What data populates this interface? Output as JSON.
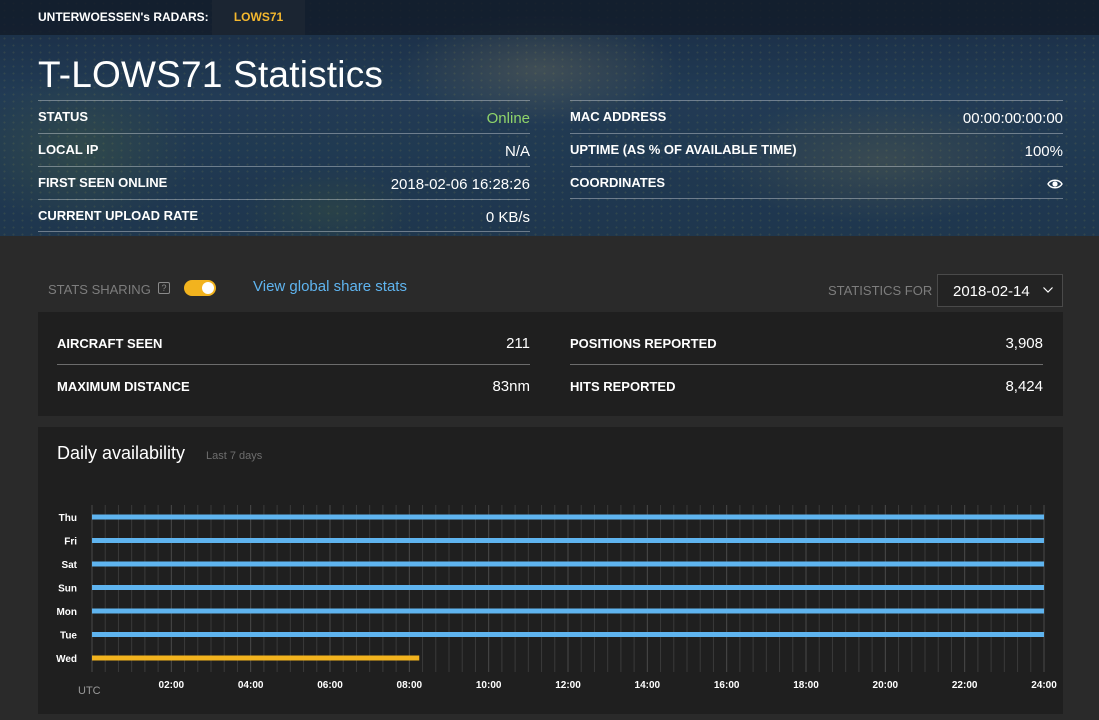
{
  "topbar": {
    "label": "UNTERWOESSEN's RADARS:",
    "tab": "LOWS71"
  },
  "page": {
    "title": "T-LOWS71 Statistics"
  },
  "info_left": [
    {
      "key": "STATUS",
      "value": "Online"
    },
    {
      "key": "LOCAL IP",
      "value": "N/A"
    },
    {
      "key": "FIRST SEEN ONLINE",
      "value": "2018-02-06 16:28:26"
    },
    {
      "key": "CURRENT UPLOAD RATE",
      "value": "0 KB/s"
    }
  ],
  "info_right": [
    {
      "key": "MAC ADDRESS",
      "value": "00:00:00:00:00"
    },
    {
      "key": "UPTIME (AS % OF AVAILABLE TIME)",
      "value": "100%"
    },
    {
      "key": "COORDINATES",
      "value_icon": "eye-icon"
    }
  ],
  "controls": {
    "share_label": "STATS SHARING",
    "help_glyph": "?",
    "sharing_enabled": true,
    "global_link": "View global share stats",
    "stats_for_label": "STATISTICS FOR",
    "selected_date": "2018-02-14"
  },
  "stats": {
    "aircraft_seen_label": "AIRCRAFT SEEN",
    "aircraft_seen_value": "211",
    "max_distance_label": "MAXIMUM DISTANCE",
    "max_distance_value": "83nm",
    "positions_label": "POSITIONS REPORTED",
    "positions_value": "3,908",
    "hits_label": "HITS REPORTED",
    "hits_value": "8,424"
  },
  "availability": {
    "title": "Daily availability",
    "subtitle": "Last 7 days",
    "unit_label": "UTC"
  },
  "colors": {
    "online": "#8fd46a",
    "accent_yellow": "#f2b31e",
    "bar_blue": "#5fb4ef",
    "link_blue": "#5fb4ef"
  },
  "chart_data": {
    "type": "bar",
    "orientation": "horizontal-range",
    "categories": [
      "Thu",
      "Fri",
      "Sat",
      "Sun",
      "Mon",
      "Tue",
      "Wed"
    ],
    "x_tick_labels": [
      "02:00",
      "04:00",
      "06:00",
      "08:00",
      "10:00",
      "12:00",
      "14:00",
      "16:00",
      "18:00",
      "20:00",
      "22:00",
      "24:00"
    ],
    "xlabel": "UTC",
    "xlim": [
      0,
      24
    ],
    "grid": true,
    "series": [
      {
        "values": [
          [
            0,
            24
          ],
          [
            0,
            24
          ],
          [
            0,
            24
          ],
          [
            0,
            24
          ],
          [
            0,
            24
          ],
          [
            0,
            24
          ],
          [
            0,
            8.25
          ]
        ]
      }
    ],
    "bar_colors": [
      "#5fb4ef",
      "#5fb4ef",
      "#5fb4ef",
      "#5fb4ef",
      "#5fb4ef",
      "#5fb4ef",
      "#f2b31e"
    ]
  }
}
